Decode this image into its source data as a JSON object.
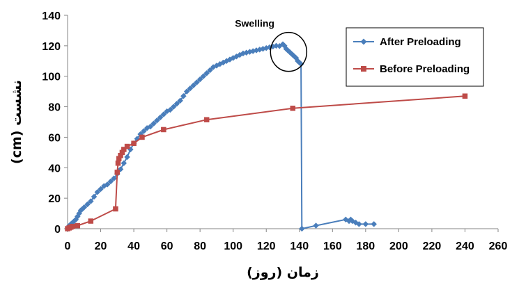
{
  "chart_data": {
    "type": "line",
    "title": "",
    "xlabel": "زمان (روز)",
    "ylabel": "نشست (cm)",
    "xlim": [
      0,
      260
    ],
    "ylim": [
      0,
      140
    ],
    "xticks": [
      "0",
      "20",
      "40",
      "60",
      "80",
      "100",
      "120",
      "140",
      "160",
      "180",
      "200",
      "220",
      "240",
      "260"
    ],
    "yticks": [
      "0",
      "20",
      "40",
      "60",
      "80",
      "100",
      "120",
      "140"
    ],
    "grid": false,
    "legend": "top-right",
    "annotations": [
      {
        "text": "Swelling"
      }
    ],
    "series": [
      {
        "name": "After Preloading",
        "color": "#4a7ebb",
        "marker": "diamond",
        "x": [
          0,
          1,
          2,
          3,
          4,
          5,
          6,
          7,
          8,
          9,
          10,
          12,
          14,
          16,
          18,
          20,
          22,
          24,
          26,
          28,
          30,
          32,
          34,
          36,
          38,
          40,
          42,
          44,
          46,
          48,
          50,
          52,
          54,
          56,
          58,
          60,
          62,
          64,
          66,
          68,
          70,
          72,
          74,
          76,
          78,
          80,
          82,
          84,
          86,
          88,
          90,
          92,
          94,
          96,
          98,
          100,
          102,
          104,
          106,
          108,
          110,
          112,
          114,
          116,
          118,
          120,
          122,
          124,
          126,
          128,
          130,
          131,
          132,
          133,
          134,
          135,
          136,
          137,
          138,
          139,
          140,
          141,
          141.5,
          150,
          168,
          170,
          171,
          172,
          174,
          176,
          180,
          185
        ],
        "y": [
          0,
          2,
          3,
          4,
          5,
          6,
          8,
          10,
          12,
          13,
          14,
          16,
          18,
          21,
          24,
          26,
          28,
          29,
          31,
          33,
          36,
          39,
          43,
          47,
          52,
          56,
          59,
          62,
          64,
          66,
          67,
          69,
          71,
          73,
          75,
          77,
          78,
          80,
          82,
          84,
          87,
          90,
          92,
          94,
          96,
          98,
          100,
          102,
          104,
          106,
          107,
          108,
          109,
          110,
          111,
          112,
          113,
          114,
          115,
          115.5,
          116,
          116.5,
          117,
          117.5,
          118,
          118.5,
          119,
          119.5,
          120,
          119.8,
          121,
          120,
          118,
          117,
          116,
          115,
          114,
          113,
          112,
          110,
          109,
          108,
          0,
          2,
          6,
          5,
          6,
          5,
          4,
          3,
          3,
          3
        ]
      },
      {
        "name": "Before Preloading",
        "color": "#be4b48",
        "marker": "square",
        "x": [
          0,
          1,
          2,
          3,
          6,
          14,
          29,
          30,
          30.5,
          31,
          32,
          33,
          34,
          36,
          40,
          45,
          58,
          84,
          136,
          240
        ],
        "y": [
          0,
          0.5,
          1,
          1.5,
          2,
          5,
          13,
          37,
          43,
          46,
          48,
          50,
          52,
          54,
          56,
          60,
          65,
          71.5,
          79,
          87
        ]
      }
    ]
  }
}
